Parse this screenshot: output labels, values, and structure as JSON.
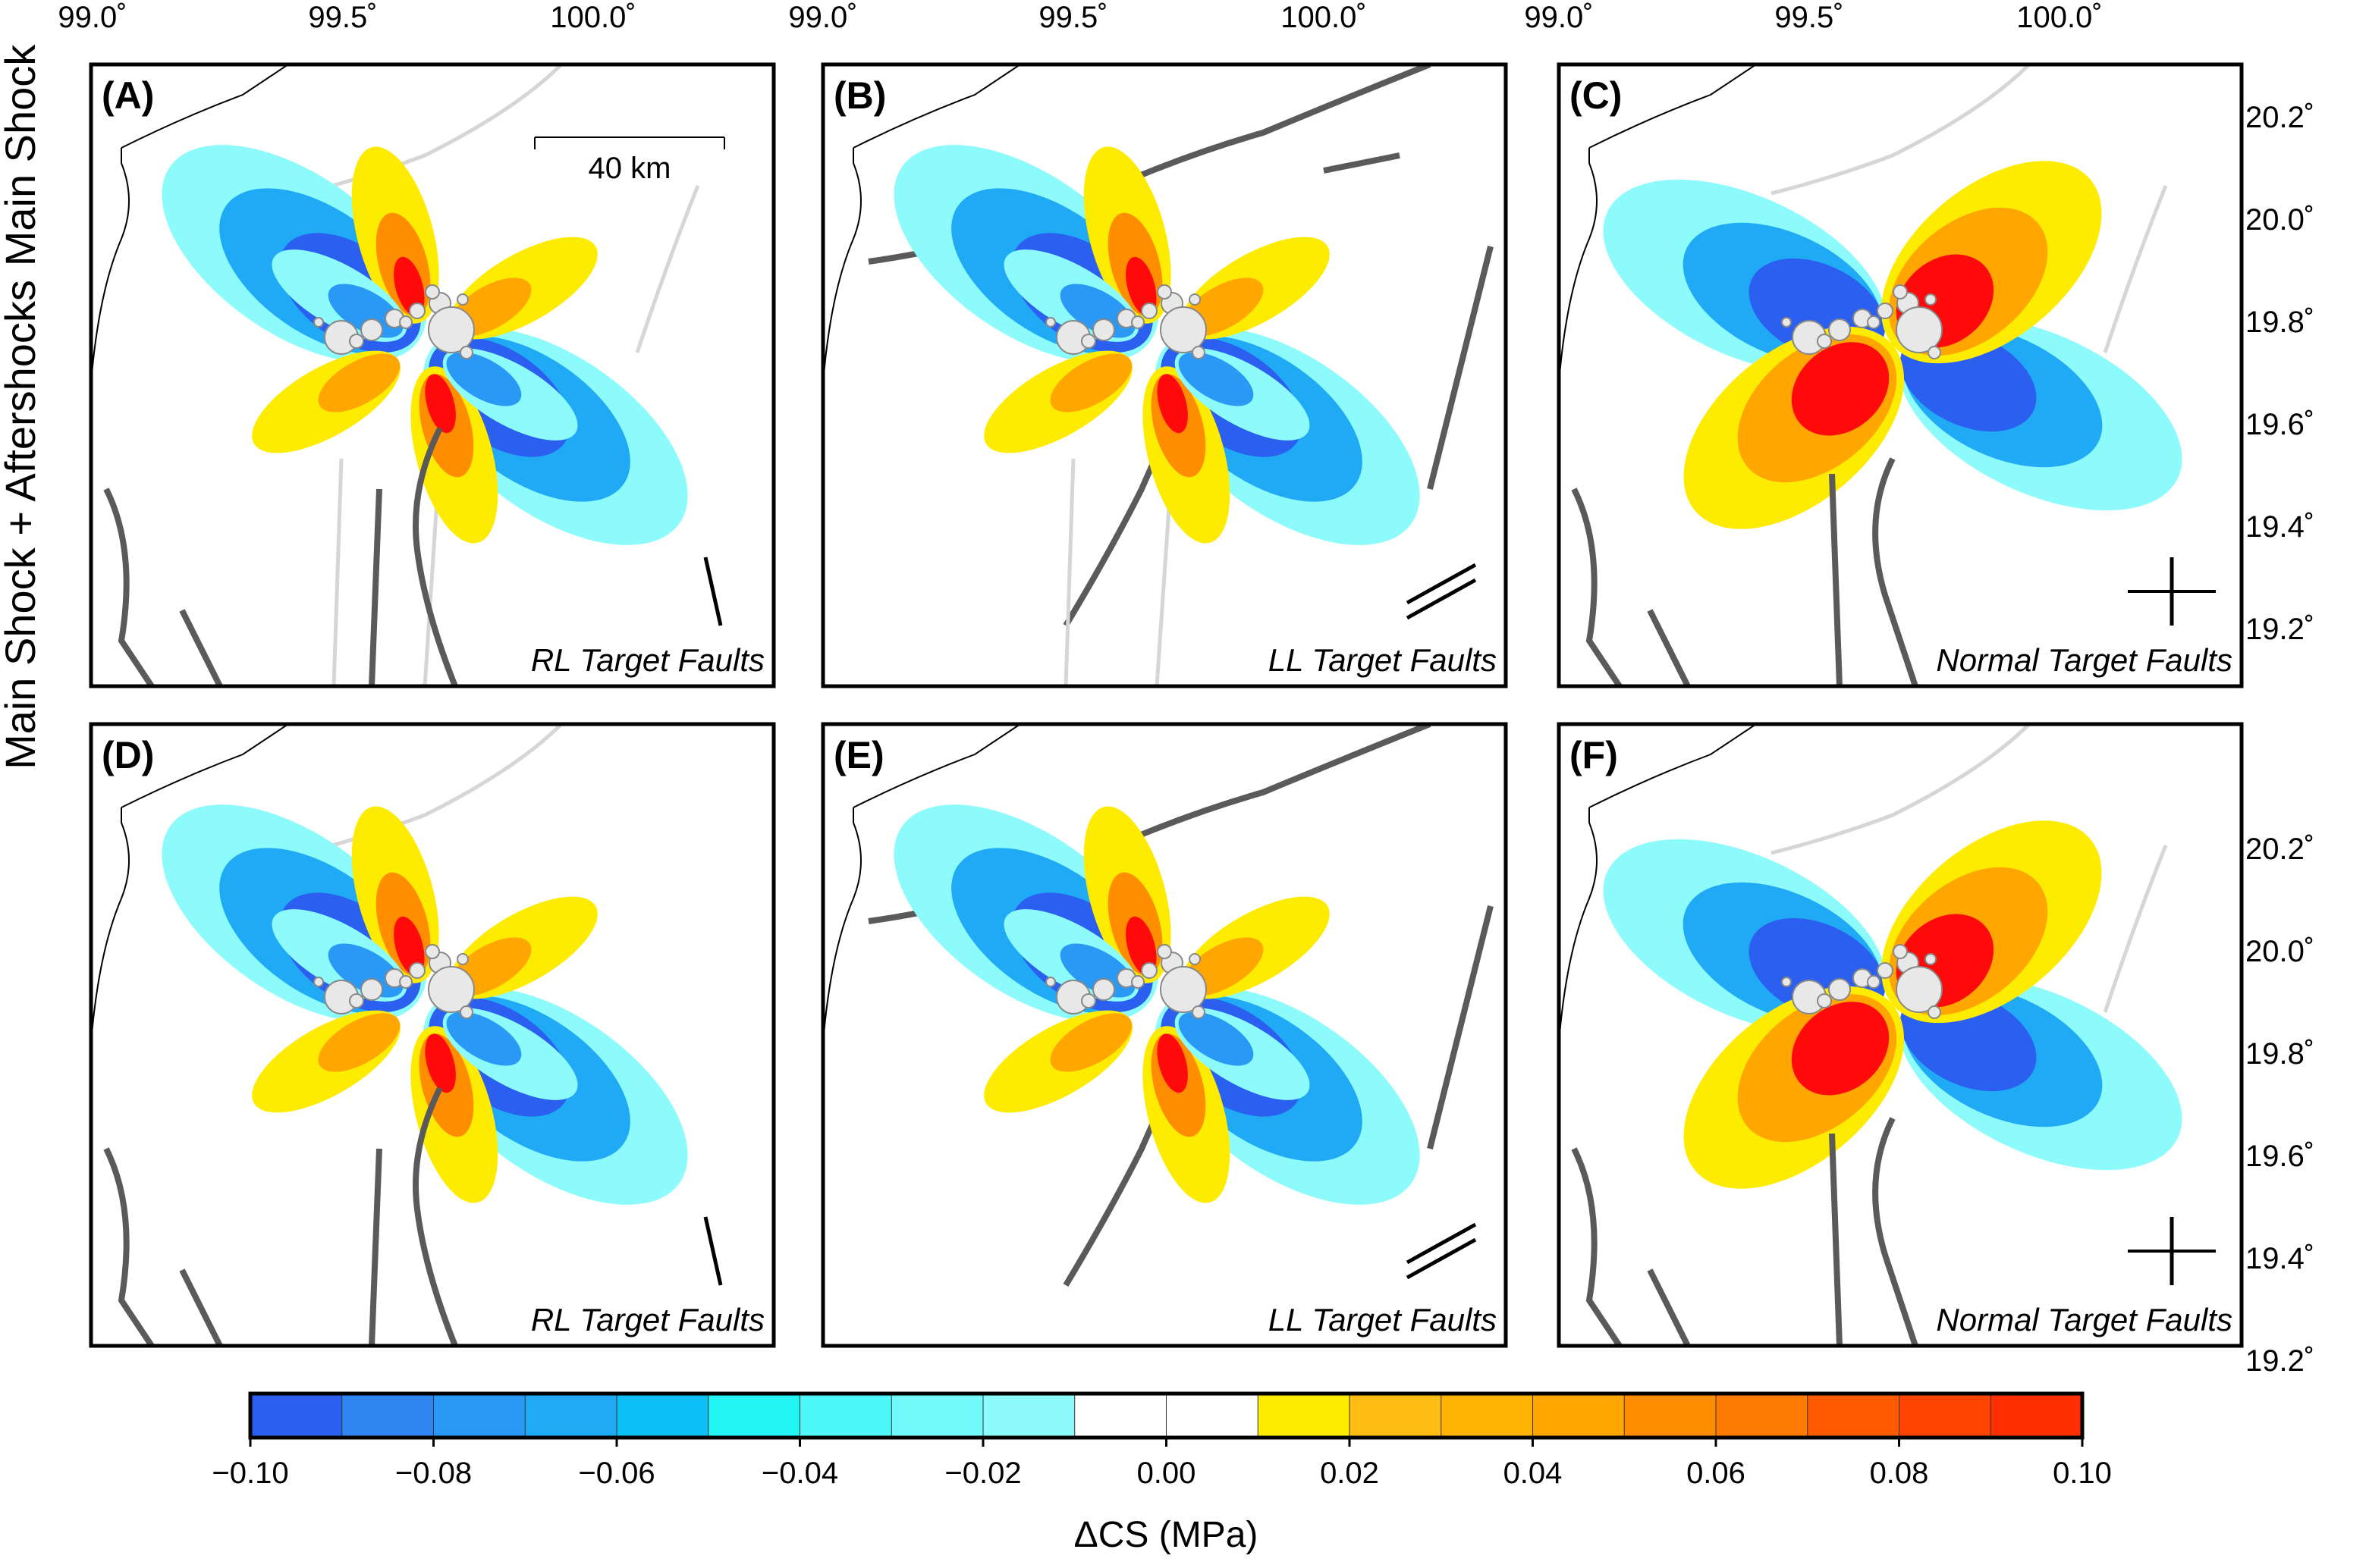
{
  "chart_data": {
    "type": "heatmap",
    "x_ticks": [
      "99.0˚",
      "99.5˚",
      "100.0˚"
    ],
    "y_ticks": [
      "19.2˚",
      "19.4˚",
      "19.6˚",
      "19.8˚",
      "20.0˚",
      "20.2˚"
    ],
    "xlim": [
      99.0,
      100.4
    ],
    "ylim": [
      19.1,
      20.3
    ],
    "row_labels": [
      "Main Shock",
      "Main Shock + Aftershocks"
    ],
    "scale_bar": "40 km",
    "panels": [
      {
        "label": "(A)",
        "target": "RL Target Faults",
        "source": "Main Shock",
        "fault_type": "right-lateral"
      },
      {
        "label": "(B)",
        "target": "LL Target Faults",
        "source": "Main Shock",
        "fault_type": "left-lateral"
      },
      {
        "label": "(C)",
        "target": "Normal Target Faults",
        "source": "Main Shock",
        "fault_type": "normal"
      },
      {
        "label": "(D)",
        "target": "RL Target Faults",
        "source": "Main Shock + Aftershocks",
        "fault_type": "right-lateral"
      },
      {
        "label": "(E)",
        "target": "LL Target Faults",
        "source": "Main Shock + Aftershocks",
        "fault_type": "left-lateral"
      },
      {
        "label": "(F)",
        "target": "Normal Target Faults",
        "source": "Main Shock + Aftershocks",
        "fault_type": "normal"
      }
    ],
    "colorbar": {
      "title": "ΔCS (MPa)",
      "min": -0.1,
      "max": 0.1,
      "step": 0.01,
      "tick_labels": [
        "−0.10",
        "−0.08",
        "−0.06",
        "−0.04",
        "−0.02",
        "0.00",
        "0.02",
        "0.04",
        "0.06",
        "0.08",
        "0.10"
      ],
      "colors": [
        "#2a5ff0",
        "#2f86f2",
        "#2a99f5",
        "#20aaf5",
        "#0cbff4",
        "#22f4f4",
        "#4ef8f8",
        "#73fafa",
        "#8dfbfb",
        "#ffffff",
        "#ffffff",
        "#fdeb00",
        "#ffbd14",
        "#ffb300",
        "#ffa600",
        "#ff8d00",
        "#ff7a00",
        "#ff5a00",
        "#ff4300",
        "#ff2e00",
        "#ff0a0a"
      ]
    }
  }
}
